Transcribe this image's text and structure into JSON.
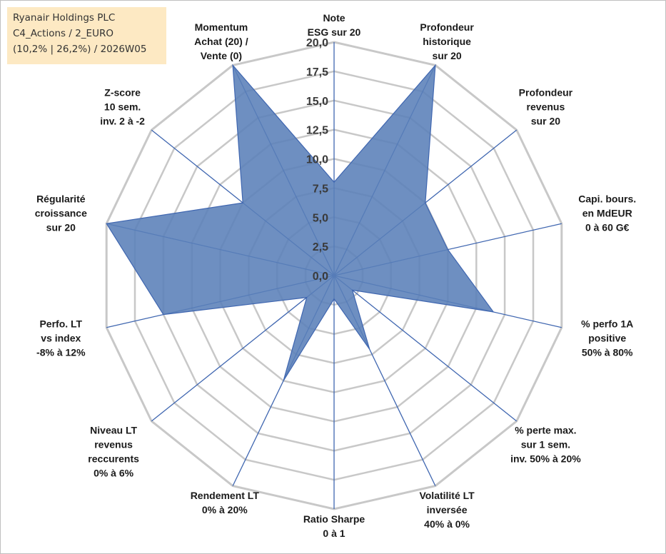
{
  "info_box": {
    "line1": "Ryanair Holdings PLC",
    "line2": "C4_Actions / 2_EURO",
    "line3": "(10,2% | 26,2%) / 2026W05"
  },
  "colors": {
    "fill": "#5a80b8",
    "stroke": "#3f66b0",
    "spoke": "#3f66b0",
    "grid": "#c8c8c8"
  },
  "chart_data": {
    "type": "radar",
    "title": "",
    "rmin": 0,
    "rmax": 20,
    "ticks": [
      "0,0",
      "2,5",
      "5,0",
      "7,5",
      "10,0",
      "12,5",
      "15,0",
      "17,5",
      "20,0"
    ],
    "axes": [
      {
        "label": [
          "Note",
          "ESG sur 20"
        ],
        "value": 8
      },
      {
        "label": [
          "Profondeur",
          "historique",
          "sur 20"
        ],
        "value": 20
      },
      {
        "label": [
          "Profondeur",
          "revenus",
          "sur 20"
        ],
        "value": 10
      },
      {
        "label": [
          "Capi. bours.",
          "en MdEUR",
          "0 à 60 G€"
        ],
        "value": 10
      },
      {
        "label": [
          "% perfo 1A",
          "positive",
          "50% à 80%"
        ],
        "value": 14
      },
      {
        "label": [
          "% perte max.",
          "sur 1 sem.",
          "inv. 50% à 20%"
        ],
        "value": 2
      },
      {
        "label": [
          "Volatilité LT",
          "inversée",
          "40% à 0%"
        ],
        "value": 7
      },
      {
        "label": [
          "Ratio Sharpe",
          "0 à 1"
        ],
        "value": 2
      },
      {
        "label": [
          "Rendement LT",
          "0% à 20%"
        ],
        "value": 10
      },
      {
        "label": [
          "Niveau LT",
          "revenus",
          "reccurents",
          "0% à 6%"
        ],
        "value": 3
      },
      {
        "label": [
          "Perfo. LT",
          "vs index",
          "-8% à 12%"
        ],
        "value": 15
      },
      {
        "label": [
          "Régularité",
          "croissance",
          "sur 20"
        ],
        "value": 20
      },
      {
        "label": [
          "Z-score",
          "10 sem.",
          "inv. 2 à -2"
        ],
        "value": 10
      },
      {
        "label": [
          "Momentum",
          "Achat (20) /",
          "Vente (0)"
        ],
        "value": 20
      }
    ]
  }
}
